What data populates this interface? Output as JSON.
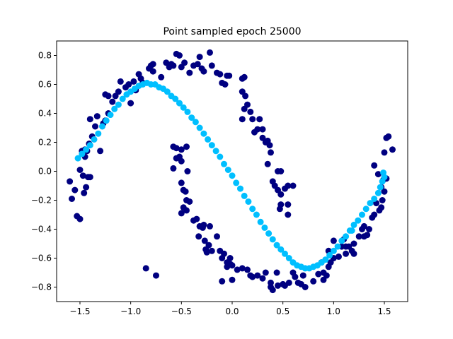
{
  "chart_data": {
    "type": "scatter",
    "title": "Point sampled epoch 25000",
    "xlabel": "",
    "ylabel": "",
    "xlim": [
      -1.73,
      1.73
    ],
    "ylim": [
      -0.9,
      0.9
    ],
    "grid": false,
    "x_ticks": [
      -1.5,
      -1.0,
      -0.5,
      0.0,
      0.5,
      1.0,
      1.5
    ],
    "x_tick_labels": [
      "−1.5",
      "−1.0",
      "−0.5",
      "0.0",
      "0.5",
      "1.0",
      "1.5"
    ],
    "y_ticks": [
      -0.8,
      -0.6,
      -0.4,
      -0.2,
      0.0,
      0.2,
      0.4,
      0.6,
      0.8
    ],
    "y_tick_labels": [
      "−0.8",
      "−0.6",
      "−0.4",
      "−0.2",
      "0.0",
      "0.2",
      "0.4",
      "0.6",
      "0.8"
    ],
    "series": [
      {
        "color": "#000080",
        "points": [
          [
            -1.6,
            -0.07
          ],
          [
            -1.58,
            -0.19
          ],
          [
            -1.55,
            -0.13
          ],
          [
            -1.53,
            -0.31
          ],
          [
            -1.5,
            -0.33
          ],
          [
            -1.5,
            0.01
          ],
          [
            -1.47,
            -0.03
          ],
          [
            -1.46,
            -0.15
          ],
          [
            -1.44,
            -0.11
          ],
          [
            -1.42,
            -0.04
          ],
          [
            -1.4,
            -0.04
          ],
          [
            -1.45,
            0.1
          ],
          [
            -1.48,
            0.14
          ],
          [
            -1.45,
            0.15
          ],
          [
            -1.43,
            0.14
          ],
          [
            -1.41,
            0.19
          ],
          [
            -1.38,
            0.24
          ],
          [
            -1.4,
            0.36
          ],
          [
            -1.35,
            0.31
          ],
          [
            -1.33,
            0.38
          ],
          [
            -1.3,
            0.14
          ],
          [
            -1.27,
            0.33
          ],
          [
            -1.25,
            0.35
          ],
          [
            -1.22,
            0.4
          ],
          [
            -1.25,
            0.53
          ],
          [
            -1.22,
            0.52
          ],
          [
            -1.18,
            0.48
          ],
          [
            -1.15,
            0.52
          ],
          [
            -1.12,
            0.55
          ],
          [
            -1.1,
            0.62
          ],
          [
            -1.05,
            0.58
          ],
          [
            -1.02,
            0.6
          ],
          [
            -1.0,
            0.47
          ],
          [
            -0.97,
            0.62
          ],
          [
            -0.95,
            0.56
          ],
          [
            -0.92,
            0.67
          ],
          [
            -0.9,
            0.64
          ],
          [
            -0.88,
            0.61
          ],
          [
            -0.82,
            0.71
          ],
          [
            -0.8,
            0.73
          ],
          [
            -0.78,
            0.74
          ],
          [
            -0.78,
            0.69
          ],
          [
            -0.7,
            0.65
          ],
          [
            -0.65,
            0.75
          ],
          [
            -0.62,
            0.72
          ],
          [
            -0.6,
            0.74
          ],
          [
            -0.58,
            0.73
          ],
          [
            -0.55,
            0.81
          ],
          [
            -0.52,
            0.8
          ],
          [
            -0.5,
            0.72
          ],
          [
            -0.47,
            0.75
          ],
          [
            -0.42,
            0.68
          ],
          [
            -0.38,
            0.73
          ],
          [
            -0.34,
            0.74
          ],
          [
            -0.32,
            0.79
          ],
          [
            -0.3,
            0.71
          ],
          [
            -0.28,
            0.69
          ],
          [
            -0.22,
            0.82
          ],
          [
            -0.2,
            0.73
          ],
          [
            -0.15,
            0.68
          ],
          [
            -0.12,
            0.67
          ],
          [
            -0.1,
            0.61
          ],
          [
            -0.07,
            0.6
          ],
          [
            -0.05,
            0.66
          ],
          [
            -0.03,
            0.66
          ],
          [
            0.1,
            0.64
          ],
          [
            0.12,
            0.65
          ],
          [
            0.1,
            0.55
          ],
          [
            0.13,
            0.52
          ],
          [
            0.12,
            0.43
          ],
          [
            0.1,
            0.36
          ],
          [
            0.15,
            0.46
          ],
          [
            0.18,
            0.41
          ],
          [
            0.2,
            0.36
          ],
          [
            0.25,
            0.29
          ],
          [
            0.22,
            0.27
          ],
          [
            0.27,
            0.36
          ],
          [
            0.3,
            0.29
          ],
          [
            0.33,
            0.2
          ],
          [
            0.3,
            0.23
          ],
          [
            0.35,
            0.21
          ],
          [
            0.37,
            0.18
          ],
          [
            0.38,
            0.13
          ],
          [
            0.35,
            0.05
          ],
          [
            0.45,
            0.0
          ],
          [
            0.48,
            -0.0
          ],
          [
            0.4,
            -0.07
          ],
          [
            0.42,
            -0.1
          ],
          [
            0.45,
            -0.13
          ],
          [
            0.48,
            -0.16
          ],
          [
            0.52,
            -0.12
          ],
          [
            0.55,
            -0.1
          ],
          [
            0.48,
            -0.23
          ],
          [
            0.47,
            -0.26
          ],
          [
            0.55,
            -0.23
          ],
          [
            0.55,
            -0.3
          ],
          [
            0.6,
            -0.1
          ],
          [
            -0.58,
            0.17
          ],
          [
            -0.55,
            0.16
          ],
          [
            -0.5,
            0.15
          ],
          [
            -0.52,
            0.1
          ],
          [
            -0.58,
            0.02
          ],
          [
            -0.55,
            0.09
          ],
          [
            -0.5,
            0.07
          ],
          [
            -0.45,
            0.17
          ],
          [
            -0.44,
            0.0
          ],
          [
            -0.5,
            -0.08
          ],
          [
            -0.48,
            -0.13
          ],
          [
            -0.46,
            -0.14
          ],
          [
            -0.45,
            -0.2
          ],
          [
            -0.48,
            -0.25
          ],
          [
            -0.5,
            -0.29
          ],
          [
            -0.45,
            -0.27
          ],
          [
            -0.42,
            -0.21
          ],
          [
            -0.38,
            -0.34
          ],
          [
            -0.35,
            -0.33
          ],
          [
            -0.32,
            -0.38
          ],
          [
            -0.29,
            -0.39
          ],
          [
            -0.33,
            -0.45
          ],
          [
            -0.28,
            -0.37
          ],
          [
            -0.22,
            -0.38
          ],
          [
            -0.27,
            -0.48
          ],
          [
            -0.23,
            -0.51
          ],
          [
            -0.26,
            -0.54
          ],
          [
            -0.25,
            -0.56
          ],
          [
            -0.2,
            -0.55
          ],
          [
            -0.15,
            -0.45
          ],
          [
            -0.12,
            -0.55
          ],
          [
            -0.1,
            -0.6
          ],
          [
            -0.08,
            -0.57
          ],
          [
            -0.05,
            -0.63
          ],
          [
            -0.02,
            -0.6
          ],
          [
            -0.05,
            -0.66
          ],
          [
            -0.02,
            -0.64
          ],
          [
            0.0,
            -0.65
          ],
          [
            0.05,
            -0.68
          ],
          [
            0.1,
            -0.67
          ],
          [
            0.15,
            -0.68
          ],
          [
            0.18,
            -0.72
          ],
          [
            0.2,
            -0.73
          ],
          [
            0.25,
            -0.72
          ],
          [
            0.3,
            -0.74
          ],
          [
            0.33,
            -0.7
          ],
          [
            0.38,
            -0.77
          ],
          [
            0.4,
            -0.82
          ],
          [
            0.38,
            -0.8
          ],
          [
            0.44,
            -0.7
          ],
          [
            0.5,
            -0.78
          ],
          [
            0.52,
            -0.79
          ],
          [
            0.56,
            -0.77
          ],
          [
            0.6,
            -0.7
          ],
          [
            0.65,
            -0.77
          ],
          [
            0.68,
            -0.78
          ],
          [
            0.7,
            -0.72
          ],
          [
            0.72,
            -0.8
          ],
          [
            0.8,
            -0.76
          ],
          [
            0.85,
            -0.71
          ],
          [
            0.88,
            -0.63
          ],
          [
            0.9,
            -0.7
          ],
          [
            0.93,
            -0.72
          ],
          [
            0.95,
            -0.66
          ],
          [
            0.97,
            -0.63
          ],
          [
            1.05,
            -0.59
          ],
          [
            1.1,
            -0.47
          ],
          [
            1.12,
            -0.52
          ],
          [
            1.15,
            -0.52
          ],
          [
            1.18,
            -0.55
          ],
          [
            1.2,
            -0.5
          ],
          [
            1.2,
            -0.57
          ],
          [
            1.25,
            -0.45
          ],
          [
            1.28,
            -0.4
          ],
          [
            1.3,
            -0.38
          ],
          [
            1.35,
            -0.4
          ],
          [
            1.3,
            -0.45
          ],
          [
            1.33,
            -0.44
          ],
          [
            1.38,
            -0.32
          ],
          [
            1.42,
            -0.22
          ],
          [
            1.45,
            -0.27
          ],
          [
            1.48,
            -0.2
          ],
          [
            1.5,
            -0.14
          ],
          [
            1.52,
            -0.05
          ],
          [
            1.49,
            -0.06
          ],
          [
            1.47,
            -0.11
          ],
          [
            1.47,
            -0.25
          ],
          [
            1.5,
            0.13
          ],
          [
            1.52,
            0.23
          ],
          [
            1.54,
            0.24
          ],
          [
            1.58,
            0.15
          ],
          [
            1.4,
            -0.3
          ],
          [
            -0.85,
            -0.67
          ],
          [
            -0.75,
            -0.72
          ],
          [
            -0.1,
            -0.76
          ],
          [
            0.0,
            -0.75
          ],
          [
            0.45,
            -0.79
          ],
          [
            0.62,
            -0.73
          ],
          [
            0.9,
            -0.75
          ],
          [
            1.0,
            -0.48
          ],
          [
            1.08,
            -0.52
          ],
          [
            1.12,
            -0.57
          ],
          [
            1.0,
            -0.6
          ],
          [
            0.95,
            -0.55
          ],
          [
            1.4,
            0.04
          ],
          [
            1.44,
            -0.02
          ]
        ]
      },
      {
        "color": "#00BFFF",
        "points": [
          [
            -1.52,
            0.09
          ],
          [
            -1.48,
            0.12
          ],
          [
            -1.44,
            0.15
          ],
          [
            -1.4,
            0.18
          ],
          [
            -1.36,
            0.22
          ],
          [
            -1.32,
            0.26
          ],
          [
            -1.28,
            0.31
          ],
          [
            -1.24,
            0.35
          ],
          [
            -1.2,
            0.39
          ],
          [
            -1.16,
            0.43
          ],
          [
            -1.12,
            0.46
          ],
          [
            -1.08,
            0.5
          ],
          [
            -1.04,
            0.53
          ],
          [
            -1.0,
            0.55
          ],
          [
            -0.96,
            0.57
          ],
          [
            -0.92,
            0.59
          ],
          [
            -0.88,
            0.6
          ],
          [
            -0.84,
            0.61
          ],
          [
            -0.8,
            0.6
          ],
          [
            -0.76,
            0.6
          ],
          [
            -0.72,
            0.58
          ],
          [
            -0.68,
            0.57
          ],
          [
            -0.64,
            0.55
          ],
          [
            -0.6,
            0.52
          ],
          [
            -0.56,
            0.5
          ],
          [
            -0.52,
            0.47
          ],
          [
            -0.48,
            0.44
          ],
          [
            -0.44,
            0.41
          ],
          [
            -0.4,
            0.37
          ],
          [
            -0.36,
            0.34
          ],
          [
            -0.32,
            0.3
          ],
          [
            -0.28,
            0.26
          ],
          [
            -0.24,
            0.22
          ],
          [
            -0.2,
            0.18
          ],
          [
            -0.16,
            0.14
          ],
          [
            -0.12,
            0.1
          ],
          [
            -0.08,
            0.05
          ],
          [
            -0.04,
            0.01
          ],
          [
            0.0,
            -0.03
          ],
          [
            0.04,
            -0.08
          ],
          [
            0.08,
            -0.12
          ],
          [
            0.12,
            -0.17
          ],
          [
            0.16,
            -0.21
          ],
          [
            0.2,
            -0.26
          ],
          [
            0.24,
            -0.3
          ],
          [
            0.28,
            -0.35
          ],
          [
            0.32,
            -0.39
          ],
          [
            0.36,
            -0.43
          ],
          [
            0.4,
            -0.47
          ],
          [
            0.44,
            -0.51
          ],
          [
            0.48,
            -0.54
          ],
          [
            0.52,
            -0.57
          ],
          [
            0.56,
            -0.6
          ],
          [
            0.6,
            -0.63
          ],
          [
            0.64,
            -0.65
          ],
          [
            0.68,
            -0.66
          ],
          [
            0.72,
            -0.67
          ],
          [
            0.76,
            -0.67
          ],
          [
            0.8,
            -0.66
          ],
          [
            0.84,
            -0.65
          ],
          [
            0.88,
            -0.63
          ],
          [
            0.92,
            -0.61
          ],
          [
            0.96,
            -0.58
          ],
          [
            1.0,
            -0.55
          ],
          [
            1.04,
            -0.52
          ],
          [
            1.08,
            -0.48
          ],
          [
            1.12,
            -0.45
          ],
          [
            1.16,
            -0.41
          ],
          [
            1.2,
            -0.37
          ],
          [
            1.24,
            -0.34
          ],
          [
            1.28,
            -0.3
          ],
          [
            1.32,
            -0.26
          ],
          [
            1.36,
            -0.22
          ],
          [
            1.4,
            -0.19
          ],
          [
            1.44,
            -0.15
          ],
          [
            1.46,
            -0.11
          ],
          [
            1.48,
            -0.07
          ],
          [
            1.5,
            -0.04
          ],
          [
            1.49,
            -0.01
          ],
          [
            1.18,
            -0.41
          ]
        ]
      }
    ]
  }
}
